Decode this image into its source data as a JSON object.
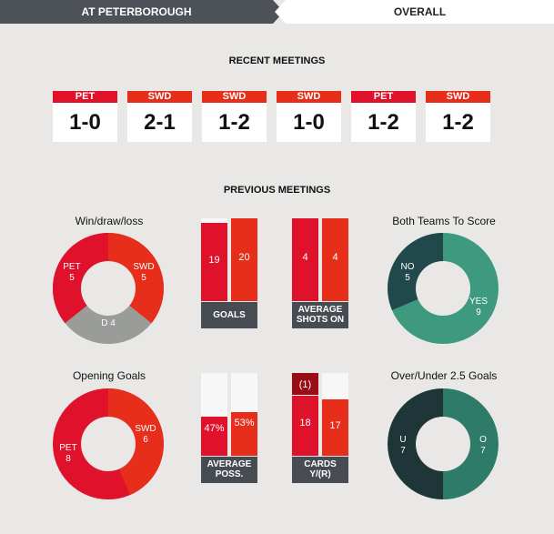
{
  "tabs": {
    "active": "AT PETERBOROUGH",
    "inactive": "OVERALL"
  },
  "recent": {
    "title": "RECENT MEETINGS",
    "items": [
      {
        "team": "PET",
        "score": "1-0"
      },
      {
        "team": "SWD",
        "score": "2-1"
      },
      {
        "team": "SWD",
        "score": "1-2"
      },
      {
        "team": "SWD",
        "score": "1-0"
      },
      {
        "team": "PET",
        "score": "1-2"
      },
      {
        "team": "SWD",
        "score": "1-2"
      }
    ]
  },
  "previous": {
    "title": "PREVIOUS MEETINGS",
    "wdl": {
      "title": "Win/draw/loss",
      "pet_label": "PET",
      "pet": "5",
      "swd_label": "SWD",
      "swd": "5",
      "draw_label": "D",
      "draw": "4"
    },
    "goals": {
      "left": "19",
      "right": "20",
      "caption": "GOALS",
      "left_frac": 0.95,
      "right_frac": 1.0
    },
    "shots": {
      "left": "4",
      "right": "4",
      "caption_l1": "AVERAGE",
      "caption_l2": "SHOTS ON",
      "left_frac": 1.0,
      "right_frac": 1.0
    },
    "btts": {
      "title": "Both Teams To Score",
      "no_label": "NO",
      "no": "5",
      "yes_label": "YES",
      "yes": "9"
    },
    "opening": {
      "title": "Opening Goals",
      "pet_label": "PET",
      "pet": "8",
      "swd_label": "SWD",
      "swd": "6"
    },
    "poss": {
      "left": "47%",
      "right": "53%",
      "caption_l1": "AVERAGE",
      "caption_l2": "POSS.",
      "left_frac": 0.47,
      "right_frac": 0.53
    },
    "cards": {
      "left": "18",
      "right": "17",
      "red": "(1)",
      "caption_l1": "CARDS",
      "caption_l2": "Y/(R)"
    },
    "ou": {
      "title": "Over/Under 2.5 Goals",
      "u_label": "U",
      "u": "7",
      "o_label": "O",
      "o": "7"
    }
  },
  "colors": {
    "pet": "#e0112b",
    "swd": "#e62e1b",
    "draw": "#9a9c9a",
    "no": "#21484a",
    "yes": "#3e9a7f",
    "under": "#1e3637",
    "over": "#2e7b69",
    "dark": "#4d5258",
    "red_card": "#9b0d16"
  }
}
